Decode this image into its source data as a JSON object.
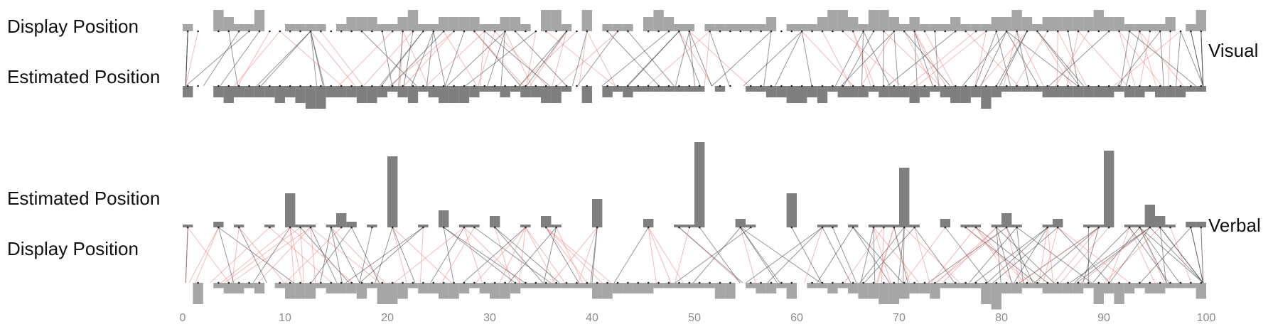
{
  "chart_data": {
    "type": "bipartite-histogram",
    "x_axis": {
      "min": 0,
      "max": 100,
      "ticks": [
        0,
        10,
        20,
        30,
        40,
        50,
        60,
        70,
        80,
        90,
        100
      ]
    },
    "panels": [
      {
        "title": "Visual",
        "top_label": "Display Position",
        "bottom_label": "Estimated Position",
        "top_hist": [
          0,
          0,
          0,
          0,
          0,
          0,
          0,
          0,
          0,
          0,
          0,
          0,
          0,
          0,
          0,
          0,
          0,
          0,
          0,
          0,
          0,
          0,
          0,
          0,
          0,
          0,
          0,
          0,
          0,
          0,
          0,
          0,
          0,
          0,
          0,
          0,
          0,
          0,
          0,
          0,
          0,
          0,
          0,
          0,
          0,
          0,
          0,
          0,
          0,
          0,
          0,
          0,
          0,
          0,
          0,
          0,
          0,
          0,
          0,
          0,
          0,
          0,
          0,
          0,
          0,
          0,
          0,
          0,
          0,
          0,
          0,
          0,
          0,
          0,
          0,
          0,
          0,
          0,
          0,
          0,
          0,
          0,
          0,
          0,
          0,
          0,
          0,
          0,
          0,
          0,
          0,
          0,
          0,
          0,
          0,
          0,
          0,
          0,
          0,
          0,
          0,
          0,
          0,
          0,
          0,
          0,
          0,
          0,
          0,
          0,
          0,
          0,
          0,
          0,
          0,
          0,
          0,
          0,
          0,
          0,
          0,
          0,
          0,
          0,
          0,
          0,
          0,
          0,
          0,
          0,
          0,
          0,
          0,
          0,
          0,
          0,
          0,
          0,
          0,
          0,
          0,
          0,
          0,
          0,
          0,
          0,
          0,
          0,
          0,
          0,
          0,
          0,
          0,
          0,
          0,
          0,
          0,
          0,
          0,
          0,
          0,
          0,
          0,
          0,
          0,
          0,
          0,
          0,
          0,
          0,
          0,
          0,
          0,
          0,
          0,
          0,
          0,
          0,
          0,
          0,
          0,
          0,
          0,
          0,
          0,
          0,
          0,
          0,
          0,
          0,
          0,
          0,
          0,
          0,
          0,
          0,
          0,
          0,
          0,
          0
        ],
        "bottom_hist": [
          0,
          0,
          0,
          0,
          0,
          0,
          0,
          0,
          0,
          0,
          0,
          0,
          0,
          0,
          0,
          0,
          0,
          0,
          0,
          0,
          0,
          0,
          0,
          0,
          0,
          0,
          0,
          0,
          0,
          0,
          0,
          0,
          0,
          0,
          0,
          0,
          0,
          0,
          0,
          0,
          0,
          0,
          0,
          0,
          0,
          0,
          0,
          0,
          0,
          0,
          0,
          0,
          0,
          0,
          0,
          0,
          0,
          0,
          0,
          0,
          0,
          0,
          0,
          0,
          0,
          0,
          0,
          0,
          0,
          0,
          0,
          0,
          0,
          0,
          0,
          0,
          0,
          0,
          0,
          0,
          0,
          0,
          0,
          0,
          0,
          0,
          0,
          0,
          0,
          0,
          0,
          0,
          0,
          0,
          0,
          0,
          0,
          0,
          0,
          0,
          0,
          0,
          0,
          0,
          0,
          0,
          0,
          0,
          0,
          0,
          0,
          0,
          0,
          0,
          0,
          0,
          0,
          0,
          0,
          0,
          0,
          0,
          0,
          0,
          0,
          0,
          0,
          0,
          0,
          0,
          0,
          0,
          0,
          0,
          0,
          0,
          0,
          0,
          0,
          0,
          0,
          0,
          0,
          0,
          0,
          0,
          0,
          0,
          0,
          0,
          0,
          0,
          0,
          0,
          0,
          0,
          0,
          0,
          0,
          0,
          0,
          0,
          0,
          0,
          0,
          0,
          0,
          0,
          0,
          0,
          0,
          0,
          0,
          0,
          0,
          0,
          0,
          0,
          0,
          0,
          0,
          0,
          0,
          0,
          0,
          0,
          0,
          0,
          0,
          0,
          0,
          0,
          0,
          0,
          0,
          0,
          0,
          0,
          0,
          0
        ]
      },
      {
        "title": "Verbal",
        "top_label": "Estimated Position",
        "bottom_label": "Display Position",
        "top_hist": [
          0,
          0,
          0,
          0,
          0,
          0,
          0,
          0,
          0,
          0,
          0,
          0,
          0,
          0,
          0,
          0,
          0,
          0,
          0,
          0,
          0,
          0,
          0,
          0,
          0,
          0,
          0,
          0,
          0,
          0,
          0,
          0,
          0,
          0,
          0,
          0,
          0,
          0,
          0,
          0,
          0,
          0,
          0,
          0,
          0,
          0,
          0,
          0,
          0,
          0,
          0,
          0,
          0,
          0,
          0,
          0,
          0,
          0,
          0,
          0,
          0,
          0,
          0,
          0,
          0,
          0,
          0,
          0,
          0,
          0,
          0,
          0,
          0,
          0,
          0,
          0,
          0,
          0,
          0,
          0,
          0,
          0,
          0,
          0,
          0,
          0,
          0,
          0,
          0,
          0,
          0,
          0,
          0,
          0,
          0,
          0,
          0,
          0,
          0,
          0,
          0,
          0,
          0,
          0,
          0,
          0,
          0,
          0,
          0,
          0,
          0,
          0,
          0,
          0,
          0,
          0,
          0,
          0,
          0,
          0,
          0,
          0,
          0,
          0,
          0,
          0,
          0,
          0,
          0,
          0,
          0,
          0,
          0,
          0,
          0,
          0,
          0,
          0,
          0,
          0,
          0,
          0,
          0,
          0,
          0,
          0,
          0,
          0,
          0,
          0,
          0,
          0,
          0,
          0,
          0,
          0,
          0,
          0,
          0,
          0,
          0,
          0,
          0,
          0,
          0,
          0,
          0,
          0,
          0,
          0,
          0,
          0,
          0,
          0,
          0,
          0,
          0,
          0,
          0,
          0,
          0,
          0,
          0,
          0,
          0,
          0,
          0,
          0,
          0,
          0,
          0,
          0,
          0,
          0,
          0,
          0,
          0,
          0,
          0,
          0
        ],
        "bottom_hist": [
          0,
          0,
          0,
          0,
          0,
          0,
          0,
          0,
          0,
          0,
          0,
          0,
          0,
          0,
          0,
          0,
          0,
          0,
          0,
          0,
          0,
          0,
          0,
          0,
          0,
          0,
          0,
          0,
          0,
          0,
          0,
          0,
          0,
          0,
          0,
          0,
          0,
          0,
          0,
          0,
          0,
          0,
          0,
          0,
          0,
          0,
          0,
          0,
          0,
          0,
          0,
          0,
          0,
          0,
          0,
          0,
          0,
          0,
          0,
          0,
          0,
          0,
          0,
          0,
          0,
          0,
          0,
          0,
          0,
          0,
          0,
          0,
          0,
          0,
          0,
          0,
          0,
          0,
          0,
          0,
          0,
          0,
          0,
          0,
          0,
          0,
          0,
          0,
          0,
          0,
          0,
          0,
          0,
          0,
          0,
          0,
          0,
          0,
          0,
          0,
          0,
          0,
          0,
          0,
          0,
          0,
          0,
          0,
          0,
          0,
          0,
          0,
          0,
          0,
          0,
          0,
          0,
          0,
          0,
          0,
          0,
          0,
          0,
          0,
          0,
          0,
          0,
          0,
          0,
          0,
          0,
          0,
          0,
          0,
          0,
          0,
          0,
          0,
          0,
          0,
          0,
          0,
          0,
          0,
          0,
          0,
          0,
          0,
          0,
          0,
          0,
          0,
          0,
          0,
          0,
          0,
          0,
          0,
          0,
          0,
          0,
          0,
          0,
          0,
          0,
          0,
          0,
          0,
          0,
          0,
          0,
          0,
          0,
          0,
          0,
          0,
          0,
          0,
          0,
          0,
          0,
          0,
          0,
          0,
          0,
          0,
          0,
          0,
          0,
          0,
          0,
          0,
          0,
          0,
          0,
          0,
          0,
          0,
          0,
          0
        ]
      }
    ],
    "visual_top_bins": {
      "x": [
        0,
        1,
        3,
        4,
        5,
        6,
        7,
        8,
        9,
        10,
        11,
        12,
        13,
        14,
        15,
        16,
        17,
        18,
        19,
        20,
        21,
        22,
        23,
        24,
        25,
        26,
        27,
        28,
        29,
        30,
        31,
        32,
        33,
        34,
        35,
        36,
        37,
        38,
        39,
        41,
        42,
        43,
        45,
        46,
        47,
        48,
        49,
        51,
        52,
        53,
        54,
        55,
        56,
        57,
        58,
        59,
        60,
        61,
        62,
        63,
        64,
        65,
        66,
        67,
        68,
        69,
        70,
        71,
        72,
        73,
        74,
        75,
        76,
        77,
        78,
        79,
        80,
        81,
        82,
        83,
        84,
        85,
        86,
        87,
        88,
        89,
        90,
        91,
        92,
        93,
        94,
        95,
        96,
        97,
        98,
        99
      ],
      "v": [
        1,
        0,
        3,
        2,
        1,
        1,
        3,
        0,
        0,
        1,
        1,
        1,
        1,
        0,
        1,
        2,
        2,
        2,
        1,
        1,
        2,
        3,
        1,
        1,
        2,
        2,
        2,
        2,
        1,
        1,
        2,
        2,
        1,
        0,
        3,
        3,
        1,
        0,
        3,
        1,
        1,
        1,
        2,
        3,
        2,
        1,
        1,
        1,
        1,
        1,
        1,
        1,
        1,
        2,
        0,
        1,
        1,
        1,
        2,
        3,
        3,
        2,
        1,
        3,
        3,
        2,
        1,
        2,
        1,
        1,
        1,
        2,
        1,
        1,
        1,
        2,
        2,
        3,
        2,
        1,
        2,
        2,
        2,
        2,
        2,
        3,
        2,
        2,
        1,
        1,
        1,
        1,
        2,
        0,
        1,
        3
      ]
    },
    "visual_bottom_bins": {
      "x": [
        0,
        1,
        3,
        4,
        5,
        6,
        7,
        8,
        9,
        10,
        11,
        12,
        13,
        14,
        15,
        16,
        17,
        18,
        19,
        20,
        21,
        22,
        23,
        24,
        25,
        26,
        27,
        28,
        29,
        30,
        31,
        32,
        33,
        34,
        35,
        36,
        37,
        38,
        39,
        41,
        42,
        43,
        44,
        45,
        46,
        47,
        48,
        49,
        50,
        52,
        53,
        55,
        56,
        57,
        58,
        59,
        60,
        61,
        62,
        63,
        64,
        65,
        66,
        67,
        68,
        69,
        70,
        71,
        72,
        73,
        74,
        75,
        76,
        77,
        78,
        79,
        80,
        81,
        82,
        83,
        84,
        85,
        86,
        87,
        88,
        89,
        90,
        91,
        92,
        93,
        94,
        95,
        96,
        97,
        98,
        99
      ],
      "v": [
        2,
        0,
        2,
        3,
        2,
        2,
        2,
        2,
        3,
        2,
        3,
        4,
        4,
        2,
        2,
        2,
        3,
        3,
        2,
        1,
        2,
        3,
        1,
        2,
        3,
        3,
        3,
        2,
        1,
        1,
        2,
        1,
        2,
        2,
        3,
        3,
        1,
        0,
        3,
        2,
        1,
        2,
        1,
        1,
        1,
        1,
        1,
        1,
        1,
        1,
        0,
        1,
        1,
        2,
        2,
        3,
        3,
        2,
        3,
        1,
        2,
        2,
        2,
        1,
        2,
        2,
        2,
        3,
        2,
        1,
        2,
        3,
        3,
        2,
        4,
        2,
        1,
        1,
        1,
        1,
        2,
        2,
        2,
        2,
        2,
        2,
        2,
        1,
        2,
        2,
        1,
        2,
        2,
        2,
        1,
        1
      ]
    },
    "verbal_top_bins": {
      "x": [
        0,
        3,
        5,
        8,
        10,
        11,
        12,
        14,
        15,
        16,
        18,
        20,
        23,
        25,
        27,
        28,
        30,
        33,
        35,
        36,
        40,
        45,
        48,
        49,
        50,
        54,
        55,
        59,
        62,
        63,
        65,
        67,
        68,
        69,
        70,
        71,
        74,
        76,
        77,
        79,
        80,
        81,
        84,
        85,
        88,
        89,
        90,
        92,
        93,
        94,
        95,
        96,
        98,
        99
      ],
      "v": [
        1,
        2,
        1,
        1,
        12,
        1,
        1,
        1,
        5,
        2,
        1,
        25,
        1,
        6,
        1,
        1,
        4,
        1,
        4,
        1,
        10,
        3,
        1,
        1,
        30,
        3,
        1,
        12,
        1,
        1,
        1,
        1,
        1,
        1,
        21,
        1,
        3,
        1,
        1,
        1,
        5,
        1,
        1,
        3,
        1,
        1,
        27,
        1,
        1,
        8,
        4,
        1,
        2,
        2
      ]
    },
    "verbal_bottom_bins": {
      "x": [
        1,
        3,
        4,
        5,
        6,
        7,
        9,
        10,
        11,
        12,
        13,
        14,
        15,
        16,
        17,
        18,
        19,
        20,
        21,
        22,
        23,
        24,
        25,
        26,
        27,
        28,
        29,
        30,
        31,
        32,
        33,
        34,
        35,
        36,
        37,
        38,
        39,
        40,
        41,
        42,
        43,
        44,
        45,
        46,
        47,
        48,
        49,
        50,
        51,
        52,
        53,
        55,
        56,
        57,
        58,
        59,
        61,
        62,
        63,
        64,
        65,
        66,
        67,
        68,
        69,
        70,
        71,
        72,
        73,
        74,
        75,
        76,
        77,
        78,
        79,
        80,
        81,
        82,
        83,
        84,
        85,
        86,
        87,
        88,
        89,
        90,
        91,
        92,
        93,
        94,
        95,
        96,
        97,
        98,
        99
      ],
      "v": [
        4,
        1,
        2,
        2,
        1,
        2,
        1,
        3,
        3,
        3,
        1,
        2,
        2,
        2,
        3,
        1,
        4,
        4,
        3,
        1,
        2,
        2,
        3,
        3,
        2,
        1,
        2,
        3,
        3,
        2,
        1,
        1,
        1,
        1,
        1,
        1,
        1,
        3,
        3,
        2,
        2,
        2,
        2,
        1,
        1,
        1,
        1,
        1,
        1,
        3,
        3,
        1,
        2,
        2,
        1,
        3,
        1,
        1,
        2,
        1,
        2,
        3,
        3,
        4,
        4,
        3,
        2,
        2,
        3,
        1,
        1,
        1,
        1,
        4,
        5,
        2,
        2,
        1,
        1,
        2,
        2,
        2,
        2,
        1,
        4,
        2,
        4,
        2,
        1,
        2,
        2,
        1,
        1,
        1,
        3
      ]
    },
    "title": "",
    "xlabel": "",
    "ylabel": ""
  },
  "labels": {
    "visual_top": "Display Position",
    "visual_bottom": "Estimated Position",
    "verbal_top": "Estimated Position",
    "verbal_bottom": "Display Position",
    "visual_title": "Visual",
    "verbal_title": "Verbal"
  },
  "colors": {
    "light_bar": "#a6a6a6",
    "dark_bar": "#7f7f7f",
    "red_link": "#f08080",
    "dark_link": "#404040",
    "axis_text": "#8c8c8c"
  }
}
